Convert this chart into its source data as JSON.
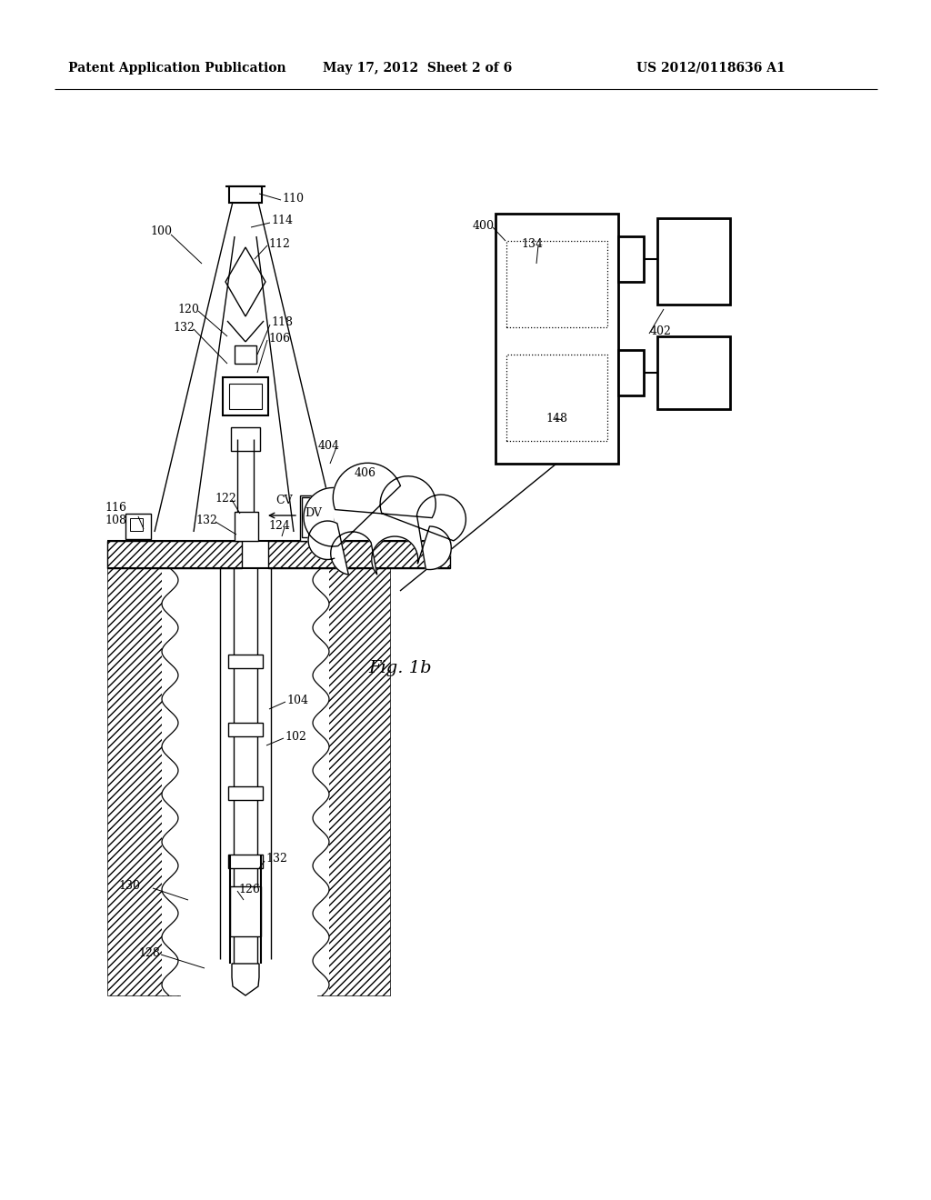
{
  "header_left": "Patent Application Publication",
  "header_mid": "May 17, 2012  Sheet 2 of 6",
  "header_right": "US 2012/0118636 A1",
  "fig_label": "Fig. 1b",
  "bg_color": "#ffffff"
}
